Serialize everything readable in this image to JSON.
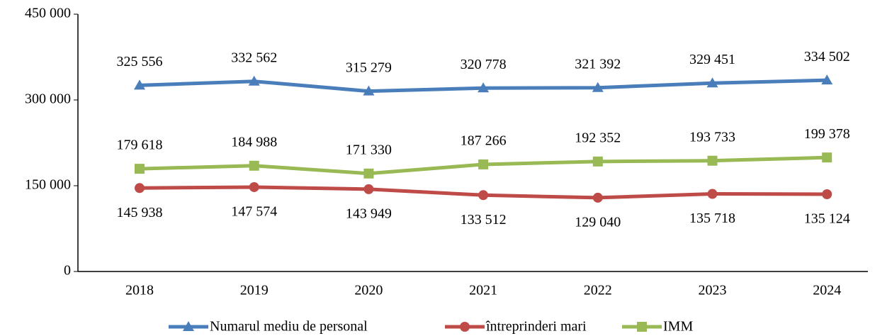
{
  "chart_data": {
    "type": "line",
    "categories": [
      "2018",
      "2019",
      "2020",
      "2021",
      "2022",
      "2023",
      "2024"
    ],
    "series": [
      {
        "name": "Numarul mediu de personal",
        "color": "#4a7ebb",
        "marker": "triangle",
        "values": [
          325556,
          332562,
          315279,
          320778,
          321392,
          329451,
          334502
        ],
        "value_labels": [
          "325 556",
          "332 562",
          "315 279",
          "320 778",
          "321 392",
          "329 451",
          "334 502"
        ]
      },
      {
        "name": "întreprinderi mari",
        "color": "#be4b48",
        "marker": "circle",
        "values": [
          145938,
          147574,
          143949,
          133512,
          129040,
          135718,
          135124
        ],
        "value_labels": [
          "145 938",
          "147 574",
          "143 949",
          "133 512",
          "129 040",
          "135 718",
          "135 124"
        ]
      },
      {
        "name": "IMM",
        "color": "#98b954",
        "marker": "square",
        "values": [
          179618,
          184988,
          171330,
          187266,
          192352,
          193733,
          199378
        ],
        "value_labels": [
          "179 618",
          "184 988",
          "171 330",
          "187 266",
          "192 352",
          "193 733",
          "199 378"
        ]
      }
    ],
    "ylim": [
      0,
      450000
    ],
    "yticks": [
      {
        "value": 0,
        "label": "0"
      },
      {
        "value": 150000,
        "label": "150 000"
      },
      {
        "value": 300000,
        "label": "300 000"
      },
      {
        "value": 450000,
        "label": "450 000"
      }
    ],
    "grid": false,
    "legend": "bottom"
  }
}
